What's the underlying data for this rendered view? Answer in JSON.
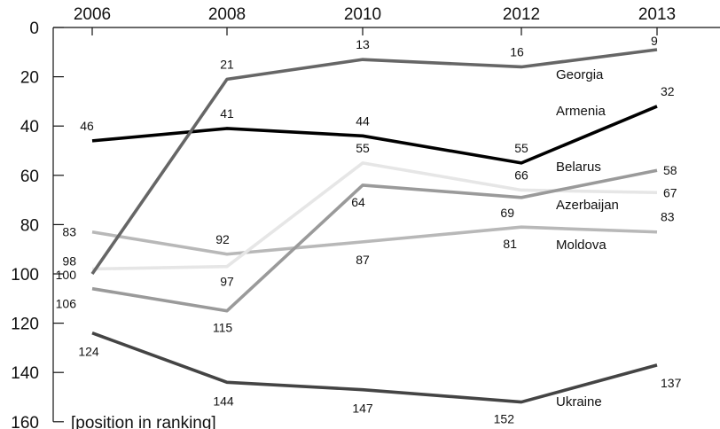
{
  "chart_data": {
    "type": "line",
    "title": "",
    "xlabel": "",
    "ylabel": "[position in ranking]",
    "categories": [
      "2006",
      "2008",
      "2010",
      "2012",
      "2013"
    ],
    "y_axis": {
      "inverted": true,
      "ylim": [
        0,
        160
      ],
      "ticks": [
        0,
        20,
        40,
        60,
        80,
        100,
        120,
        140,
        160
      ]
    },
    "grid": false,
    "legend": "series names placed next to lines on the right",
    "series": [
      {
        "name": "Georgia",
        "color": "#666666",
        "values": [
          100,
          21,
          13,
          16,
          9
        ],
        "labels": [
          "",
          "21",
          "13",
          "16",
          "9"
        ]
      },
      {
        "name": "Armenia",
        "color": "#000000",
        "values": [
          46,
          41,
          44,
          55,
          32
        ],
        "labels": [
          "46",
          "41",
          "44",
          "55",
          "32"
        ]
      },
      {
        "name": "Belarus",
        "color": "#e6e6e6",
        "values": [
          98,
          97,
          55,
          66,
          67
        ],
        "labels": [
          "98",
          "97",
          "55",
          "66",
          "67"
        ]
      },
      {
        "name": "Azerbaijan",
        "color": "#9a9a9a",
        "values": [
          106,
          115,
          64,
          69,
          58
        ],
        "labels": [
          "106",
          "115",
          "64",
          "69",
          "58"
        ]
      },
      {
        "name": "Moldova",
        "color": "#b8b8b8",
        "values": [
          83,
          92,
          87,
          81,
          83
        ],
        "labels": [
          "83",
          "92",
          "87",
          "81",
          "83"
        ]
      },
      {
        "name": "Ukraine",
        "color": "#444444",
        "values": [
          124,
          144,
          147,
          152,
          137
        ],
        "labels": [
          "124",
          "144",
          "147",
          "152",
          "137"
        ]
      }
    ],
    "extra_labels": [
      {
        "text": "100",
        "series": "Georgia",
        "point": 0
      }
    ]
  }
}
